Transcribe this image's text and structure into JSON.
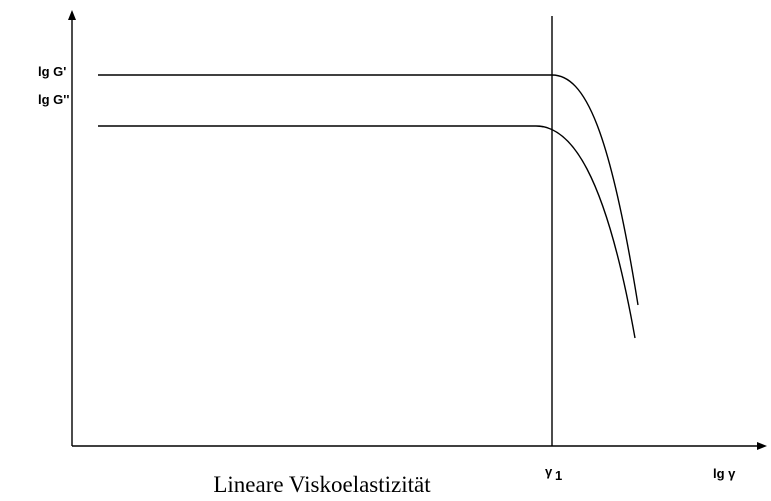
{
  "labels": {
    "storage_modulus": "lg G'",
    "loss_modulus": "lg G''",
    "x_axis": "lg γ",
    "limit_symbol": "γ",
    "limit_subscript": "1",
    "region": "Lineare Viskoelastizität"
  }
}
